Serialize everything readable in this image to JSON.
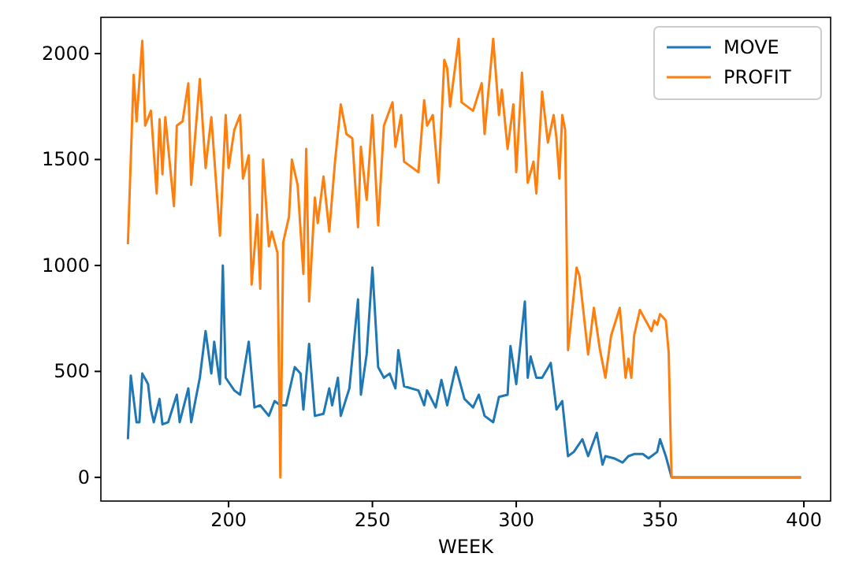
{
  "chart_data": {
    "type": "line",
    "xlabel": "WEEK",
    "xlim": [
      155.6,
      409.3
    ],
    "ylim": [
      -112,
      2171
    ],
    "xticks": [
      200,
      250,
      300,
      350,
      400
    ],
    "yticks": [
      0,
      500,
      1000,
      1500,
      2000
    ],
    "legend": "top right",
    "series": [
      {
        "name": "MOVE",
        "color": "#1f77b4",
        "x": [
          165,
          166,
          168,
          169,
          170,
          172,
          173,
          174,
          176,
          177,
          179,
          182,
          183,
          186,
          187,
          190,
          192,
          194,
          195,
          197,
          198,
          199,
          202,
          204,
          207,
          209,
          211,
          214,
          216,
          218,
          220,
          223,
          225,
          226,
          228,
          230,
          233,
          235,
          236,
          238,
          239,
          242,
          245,
          246,
          248,
          250,
          252,
          254,
          256,
          258,
          259,
          261,
          266,
          268,
          269,
          272,
          274,
          276,
          279,
          282,
          285,
          287,
          289,
          292,
          294,
          297,
          298,
          300,
          303,
          304,
          305,
          307,
          309,
          312,
          314,
          316,
          318,
          320,
          323,
          325,
          328,
          330,
          331,
          334,
          337,
          339,
          341,
          344,
          346,
          349,
          350,
          352,
          354,
          399
        ],
        "values": [
          180,
          480,
          260,
          260,
          490,
          440,
          320,
          260,
          370,
          250,
          260,
          390,
          260,
          420,
          260,
          470,
          690,
          490,
          640,
          440,
          1000,
          470,
          410,
          390,
          640,
          330,
          340,
          290,
          360,
          340,
          340,
          520,
          490,
          320,
          630,
          290,
          300,
          420,
          340,
          470,
          290,
          420,
          840,
          390,
          580,
          990,
          520,
          470,
          490,
          420,
          600,
          430,
          410,
          340,
          410,
          330,
          460,
          340,
          520,
          370,
          330,
          390,
          290,
          260,
          380,
          390,
          620,
          440,
          830,
          470,
          570,
          470,
          470,
          540,
          320,
          360,
          100,
          120,
          180,
          100,
          210,
          60,
          100,
          90,
          70,
          100,
          110,
          110,
          90,
          120,
          180,
          100,
          0,
          0
        ]
      },
      {
        "name": "PROFIT",
        "color": "#ff7f0e",
        "x": [
          165,
          167,
          168,
          170,
          171,
          173,
          175,
          176,
          177,
          178,
          181,
          182,
          184,
          186,
          187,
          190,
          192,
          194,
          197,
          199,
          200,
          202,
          204,
          205,
          207,
          208,
          210,
          211,
          212,
          214,
          215,
          217,
          218,
          219,
          221,
          222,
          224,
          226,
          227,
          228,
          230,
          231,
          233,
          235,
          237,
          239,
          241,
          243,
          245,
          246,
          247,
          248,
          250,
          252,
          254,
          257,
          258,
          260,
          261,
          266,
          268,
          269,
          271,
          273,
          275,
          276,
          277,
          280,
          281,
          285,
          288,
          289,
          292,
          294,
          295,
          297,
          299,
          300,
          302,
          304,
          306,
          307,
          309,
          311,
          313,
          314,
          315,
          316,
          317,
          318,
          321,
          322,
          325,
          327,
          329,
          331,
          333,
          336,
          338,
          339,
          340,
          341,
          343,
          345,
          347,
          348,
          349,
          350,
          352,
          353,
          354,
          399
        ],
        "values": [
          1100,
          1900,
          1680,
          2060,
          1660,
          1730,
          1340,
          1690,
          1430,
          1700,
          1280,
          1660,
          1680,
          1860,
          1380,
          1880,
          1460,
          1700,
          1140,
          1710,
          1460,
          1640,
          1710,
          1410,
          1520,
          910,
          1240,
          890,
          1500,
          1090,
          1160,
          1060,
          0,
          1110,
          1230,
          1500,
          1380,
          960,
          1550,
          830,
          1320,
          1200,
          1420,
          1160,
          1490,
          1760,
          1620,
          1600,
          1180,
          1560,
          1430,
          1310,
          1710,
          1190,
          1660,
          1770,
          1560,
          1710,
          1490,
          1440,
          1780,
          1660,
          1710,
          1390,
          1970,
          1930,
          1750,
          2070,
          1770,
          1730,
          1860,
          1620,
          2070,
          1710,
          1830,
          1550,
          1760,
          1440,
          1910,
          1390,
          1490,
          1340,
          1820,
          1580,
          1710,
          1600,
          1410,
          1710,
          1640,
          600,
          990,
          950,
          580,
          800,
          610,
          470,
          670,
          800,
          470,
          560,
          470,
          670,
          790,
          740,
          690,
          740,
          720,
          770,
          740,
          590,
          0,
          0
        ]
      }
    ]
  }
}
